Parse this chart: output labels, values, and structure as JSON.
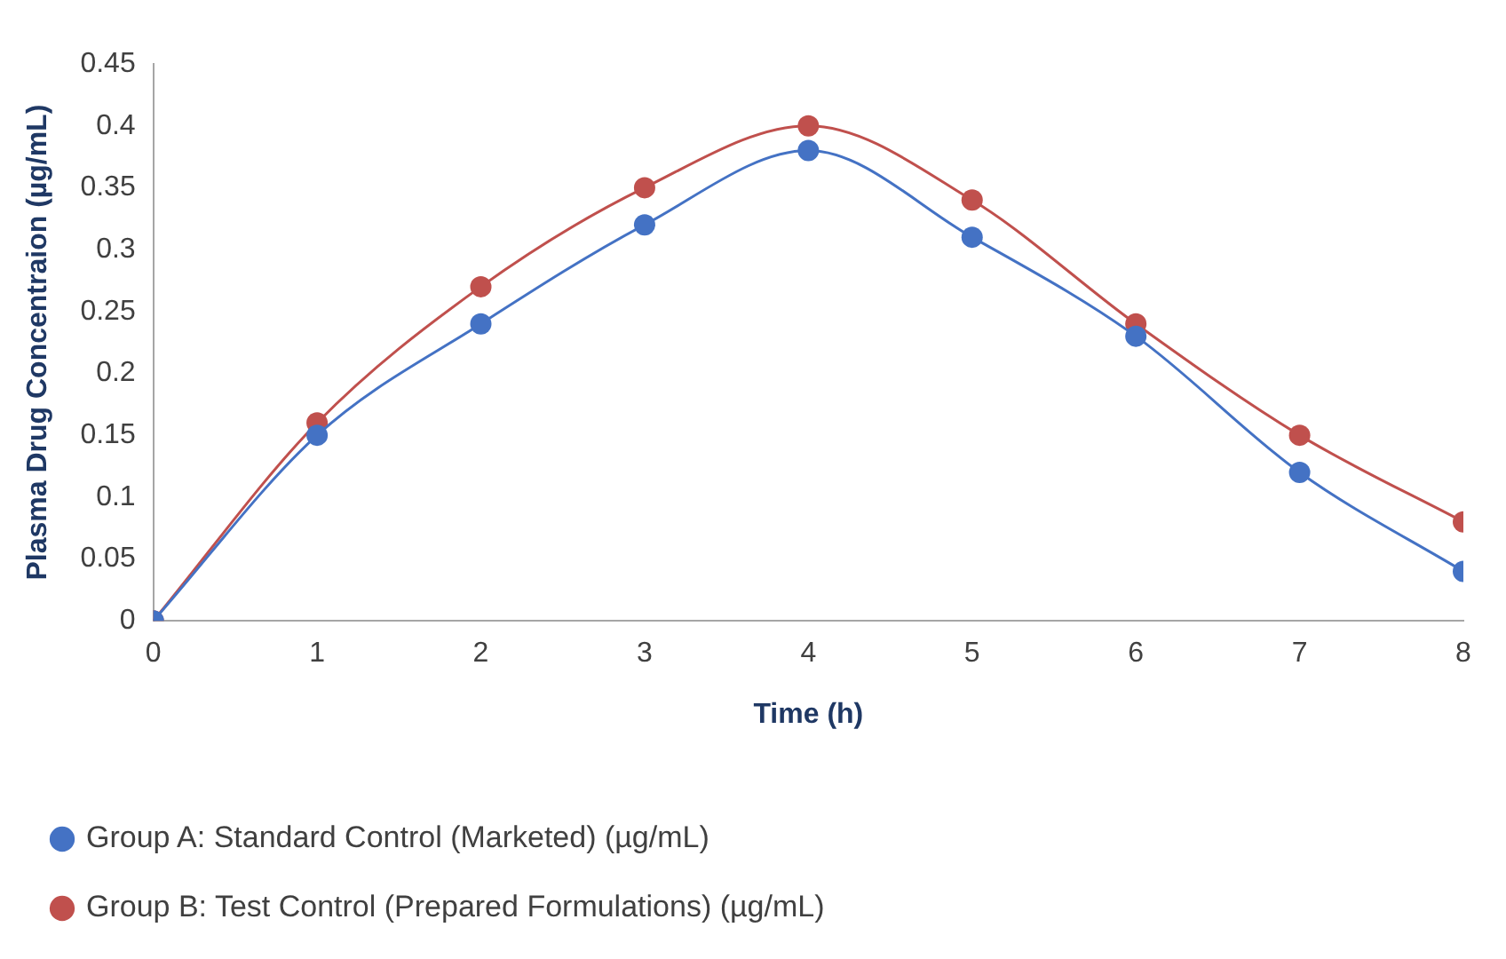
{
  "chart_data": {
    "type": "line",
    "xlabel": "Time (h)",
    "ylabel": "Plasma Drug Concentraion (µg/mL)",
    "x": [
      0,
      1,
      2,
      3,
      4,
      5,
      6,
      7,
      8
    ],
    "xlim": [
      0,
      8
    ],
    "xticks": [
      0,
      1,
      2,
      3,
      4,
      5,
      6,
      7,
      8
    ],
    "ylim": [
      0,
      0.45
    ],
    "yticks": [
      0,
      0.05,
      0.1,
      0.15,
      0.2,
      0.25,
      0.3,
      0.35,
      0.4,
      0.45
    ],
    "series": [
      {
        "name": "Group A: Standard Control (Marketed) (µg/mL)",
        "color": "#4472c4",
        "values": [
          0,
          0.15,
          0.24,
          0.32,
          0.38,
          0.31,
          0.23,
          0.12,
          0.04
        ]
      },
      {
        "name": "Group B: Test Control (Prepared Formulations) (µg/mL)",
        "color": "#c0504d",
        "values": [
          0,
          0.16,
          0.27,
          0.35,
          0.4,
          0.34,
          0.24,
          0.15,
          0.08
        ]
      }
    ],
    "grid": false,
    "legend": "bottom",
    "marker": "circle",
    "line_style": "solid"
  }
}
